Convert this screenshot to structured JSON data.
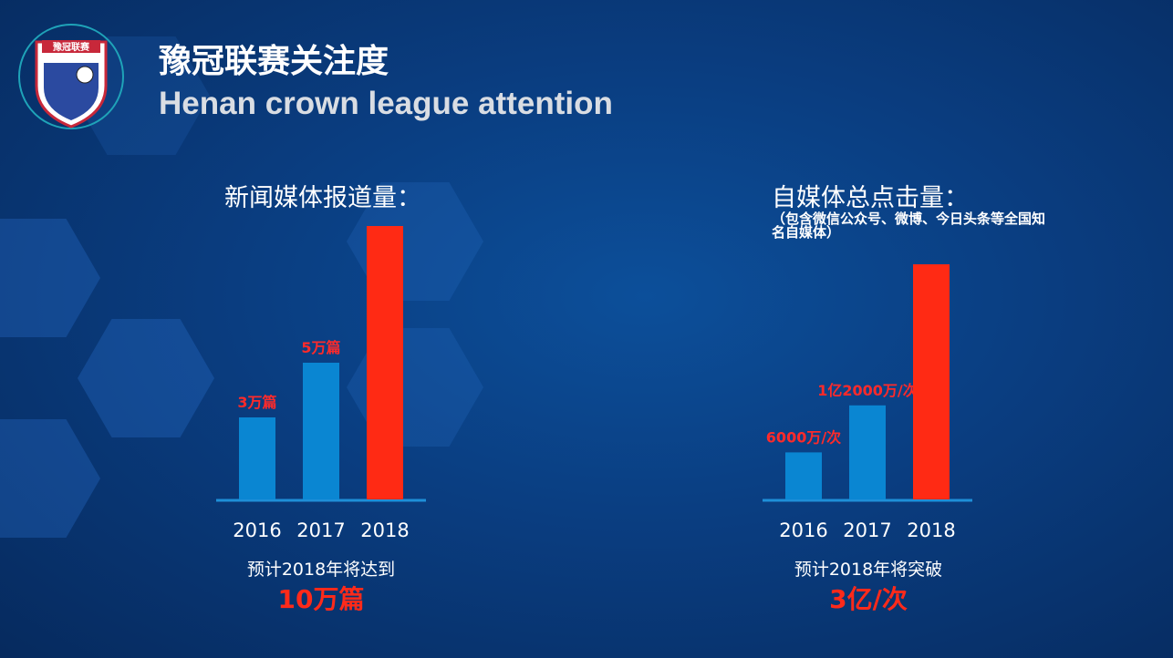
{
  "header": {
    "title_cn": "豫冠联赛关注度",
    "title_en": "Henan crown league attention",
    "logo_text": "豫冠联赛"
  },
  "colors": {
    "bar_past": "#0a86d2",
    "bar_forecast": "#ff2a14",
    "label": "#ff2a2a",
    "baseline": "#1e8fd8"
  },
  "chart_data": [
    {
      "type": "bar",
      "title": "新闻媒体报道量：",
      "categories": [
        "2016",
        "2017",
        "2018"
      ],
      "values": [
        3,
        5,
        10
      ],
      "unit": "万篇",
      "data_labels": [
        "3万篇",
        "5万篇",
        ""
      ],
      "footnote": "预计2018年将达到",
      "highlight": "10万篇"
    },
    {
      "type": "bar",
      "title": "自媒体总点击量：",
      "subtitle": "（包含微信公众号、微博、今日头条等全国知名自媒体）",
      "categories": [
        "2016",
        "2017",
        "2018"
      ],
      "values": [
        0.6,
        1.2,
        3
      ],
      "unit": "亿次",
      "data_labels": [
        "6000万/次",
        "1亿2000万/次",
        ""
      ],
      "footnote": "预计2018年将突破",
      "highlight": "3亿/次"
    }
  ]
}
